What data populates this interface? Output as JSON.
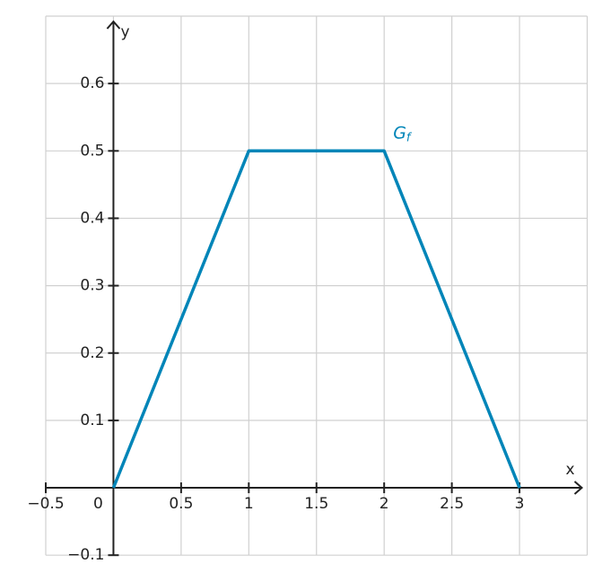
{
  "chart_data": {
    "type": "line",
    "x_label": "x",
    "y_label": "y",
    "xlim": [
      -0.5,
      3.5
    ],
    "ylim": [
      -0.1,
      0.7
    ],
    "xticks": [
      {
        "value": -0.5,
        "label": "−0.5"
      },
      0,
      0.5,
      1,
      1.5,
      2,
      2.5,
      3
    ],
    "yticks": [
      {
        "value": -0.1,
        "label": "−0.1"
      },
      0.1,
      0.2,
      0.3,
      0.4,
      0.5,
      0.6
    ],
    "grid": true,
    "series": [
      {
        "name": "G",
        "subscript": "f",
        "color": "#0085b8",
        "x": [
          0,
          1,
          2,
          3
        ],
        "values": [
          0,
          0.5,
          0.5,
          0
        ]
      }
    ]
  }
}
